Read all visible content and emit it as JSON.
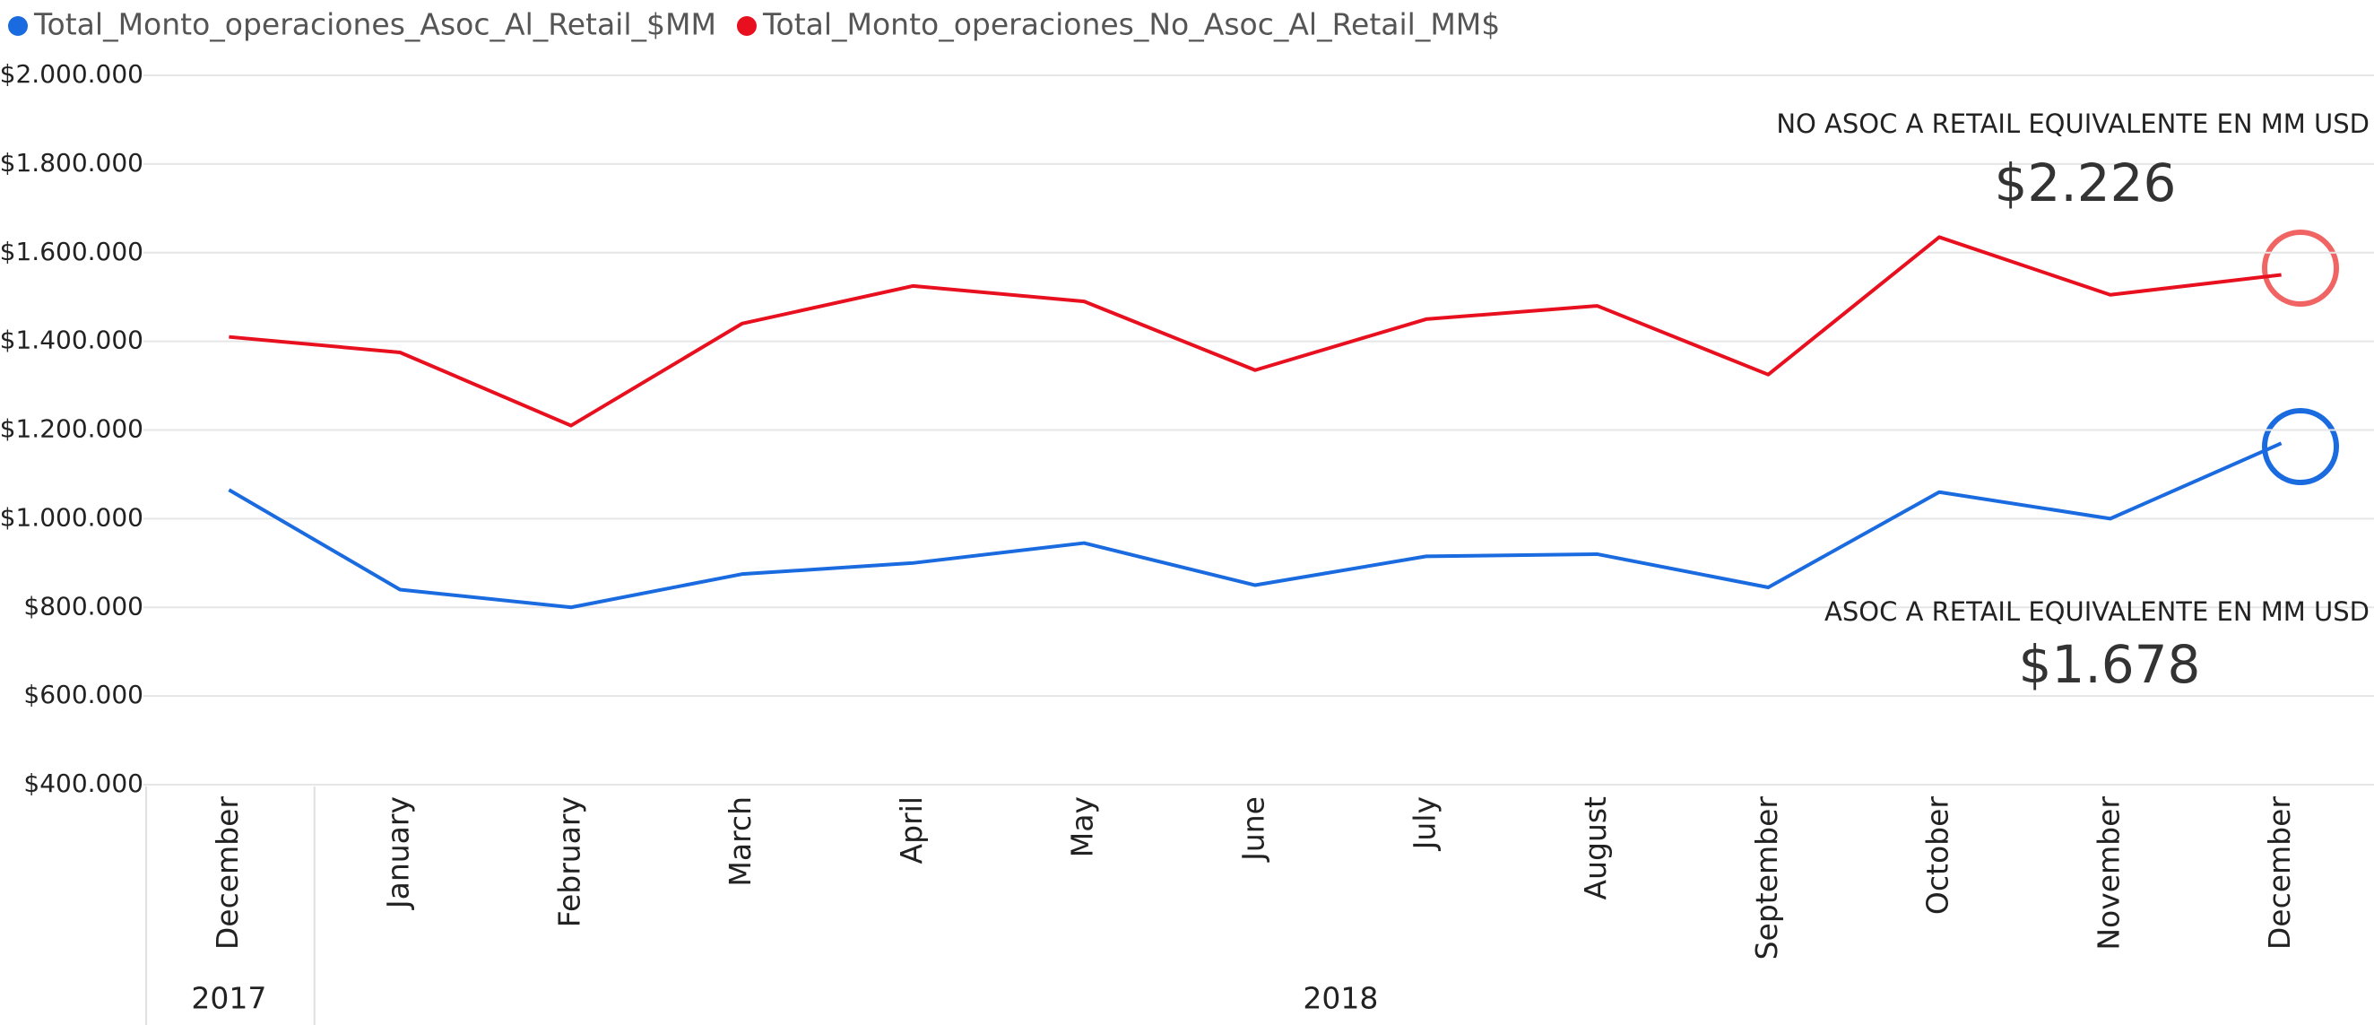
{
  "chart_data": {
    "type": "line",
    "categories": [
      "December",
      "January",
      "February",
      "March",
      "April",
      "May",
      "June",
      "July",
      "August",
      "September",
      "October",
      "November",
      "December"
    ],
    "category_years": [
      "2017",
      "2018",
      "2018",
      "2018",
      "2018",
      "2018",
      "2018",
      "2018",
      "2018",
      "2018",
      "2018",
      "2018",
      "2018"
    ],
    "series": [
      {
        "name": "Total_Monto_operaciones_Asoc_Al_Retail_$MM",
        "color": "#1a6ae0",
        "values": [
          1065000,
          840000,
          800000,
          875000,
          900000,
          945000,
          850000,
          915000,
          920000,
          845000,
          1060000,
          1000000,
          1170000
        ]
      },
      {
        "name": "Total_Monto_operaciones_No_Asoc_Al_Retail_MM$",
        "color": "#e8101f",
        "values": [
          1410000,
          1375000,
          1210000,
          1440000,
          1525000,
          1490000,
          1335000,
          1450000,
          1480000,
          1325000,
          1635000,
          1505000,
          1550000
        ]
      }
    ],
    "ylim": [
      400000,
      2000000
    ],
    "yticks": [
      {
        "value": 400000,
        "label": "$400.000"
      },
      {
        "value": 600000,
        "label": "$600.000"
      },
      {
        "value": 800000,
        "label": "$800.000"
      },
      {
        "value": 1000000,
        "label": "$1.000.000"
      },
      {
        "value": 1200000,
        "label": "$1.200.000"
      },
      {
        "value": 1400000,
        "label": "$1.400.000"
      },
      {
        "value": 1600000,
        "label": "$1.600.000"
      },
      {
        "value": 1800000,
        "label": "$1.800.000"
      },
      {
        "value": 2000000,
        "label": "$2.000.000"
      }
    ],
    "grid": true,
    "legend": "top-left",
    "annotations": [
      {
        "title": "NO ASOC A RETAIL EQUIVALENTE EN MM USD",
        "value": "$2.226"
      },
      {
        "title": "ASOC A RETAIL EQUIVALENTE EN MM USD",
        "value": "$1.678"
      }
    ]
  }
}
